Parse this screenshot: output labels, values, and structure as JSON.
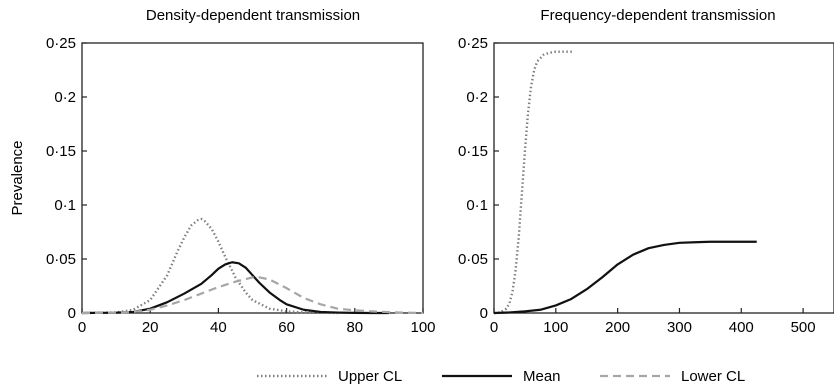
{
  "chart_data": [
    {
      "type": "line",
      "title": "Density-dependent transmission",
      "xlabel": "",
      "ylabel": "Prevalence",
      "xlim": [
        0,
        100
      ],
      "ylim": [
        0,
        0.25
      ],
      "x_ticks": [
        0,
        20,
        40,
        60,
        80,
        100
      ],
      "x_tick_labels": [
        "0",
        "20",
        "40",
        "60",
        "80",
        "100"
      ],
      "y_ticks": [
        0,
        0.05,
        0.1,
        0.15,
        0.2,
        0.25
      ],
      "y_tick_labels": [
        "0",
        "0·05",
        "0·1",
        "0·15",
        "0·2",
        "0·25"
      ],
      "grid": false,
      "series": [
        {
          "name": "Upper CL",
          "style": "dotted",
          "color": "#7f7f7f",
          "x": [
            0,
            10,
            15,
            20,
            25,
            28,
            30,
            32,
            34,
            35,
            36,
            38,
            40,
            42,
            45,
            48,
            50,
            55,
            60,
            65,
            70,
            75
          ],
          "y": [
            0,
            0.0005,
            0.003,
            0.012,
            0.035,
            0.057,
            0.07,
            0.081,
            0.086,
            0.087,
            0.085,
            0.078,
            0.066,
            0.052,
            0.033,
            0.019,
            0.012,
            0.004,
            0.0015,
            0.0005,
            0.0002,
            0
          ]
        },
        {
          "name": "Mean",
          "style": "solid",
          "color": "#111111",
          "x": [
            0,
            10,
            15,
            20,
            25,
            30,
            35,
            38,
            40,
            42,
            44,
            46,
            48,
            50,
            52,
            55,
            58,
            60,
            65,
            70,
            75,
            80,
            85,
            90
          ],
          "y": [
            0,
            0.0003,
            0.001,
            0.004,
            0.01,
            0.018,
            0.027,
            0.035,
            0.041,
            0.045,
            0.047,
            0.046,
            0.042,
            0.035,
            0.028,
            0.019,
            0.012,
            0.008,
            0.003,
            0.001,
            0.0004,
            0.0001,
            0,
            0
          ]
        },
        {
          "name": "Lower CL",
          "style": "dashed",
          "color": "#a6a6a6",
          "x": [
            0,
            10,
            15,
            20,
            25,
            30,
            35,
            40,
            45,
            50,
            52,
            55,
            60,
            65,
            70,
            75,
            80,
            85,
            90,
            95,
            100
          ],
          "y": [
            0,
            0.0003,
            0.001,
            0.003,
            0.007,
            0.012,
            0.018,
            0.024,
            0.029,
            0.033,
            0.033,
            0.031,
            0.023,
            0.014,
            0.008,
            0.004,
            0.0025,
            0.0015,
            0.0008,
            0.0003,
            0
          ]
        }
      ]
    },
    {
      "type": "line",
      "title": "Frequency-dependent transmission",
      "xlabel": "",
      "ylabel": "",
      "xlim": [
        0,
        550
      ],
      "ylim": [
        0,
        0.25
      ],
      "x_ticks": [
        0,
        100,
        200,
        300,
        400,
        500
      ],
      "x_tick_labels": [
        "0",
        "100",
        "200",
        "300",
        "400",
        "500"
      ],
      "y_ticks": [
        0,
        0.05,
        0.1,
        0.15,
        0.2,
        0.25
      ],
      "y_tick_labels": [
        "0",
        "0·05",
        "0·1",
        "0·15",
        "0·2",
        "0·25"
      ],
      "grid": false,
      "series": [
        {
          "name": "Upper CL",
          "style": "dotted",
          "color": "#7f7f7f",
          "x": [
            0,
            10,
            20,
            25,
            30,
            35,
            40,
            45,
            50,
            55,
            60,
            65,
            70,
            80,
            90,
            100,
            110,
            120,
            130
          ],
          "y": [
            0,
            0.0005,
            0.004,
            0.009,
            0.02,
            0.04,
            0.07,
            0.11,
            0.15,
            0.185,
            0.21,
            0.225,
            0.233,
            0.239,
            0.241,
            0.242,
            0.242,
            0.242,
            0.242
          ]
        },
        {
          "name": "Mean",
          "style": "solid",
          "color": "#111111",
          "x": [
            0,
            25,
            50,
            75,
            100,
            125,
            150,
            175,
            200,
            225,
            250,
            275,
            300,
            325,
            350,
            375,
            400,
            425
          ],
          "y": [
            0,
            0.0005,
            0.0015,
            0.003,
            0.007,
            0.013,
            0.022,
            0.033,
            0.045,
            0.054,
            0.06,
            0.063,
            0.065,
            0.0655,
            0.066,
            0.066,
            0.066,
            0.066
          ]
        }
      ]
    }
  ],
  "legend": {
    "placement": "bottom",
    "items": [
      {
        "label": "Upper CL",
        "style": "dotted",
        "color": "#7f7f7f"
      },
      {
        "label": "Mean",
        "style": "solid",
        "color": "#111111"
      },
      {
        "label": "Lower CL",
        "style": "dashed",
        "color": "#a6a6a6"
      }
    ]
  }
}
